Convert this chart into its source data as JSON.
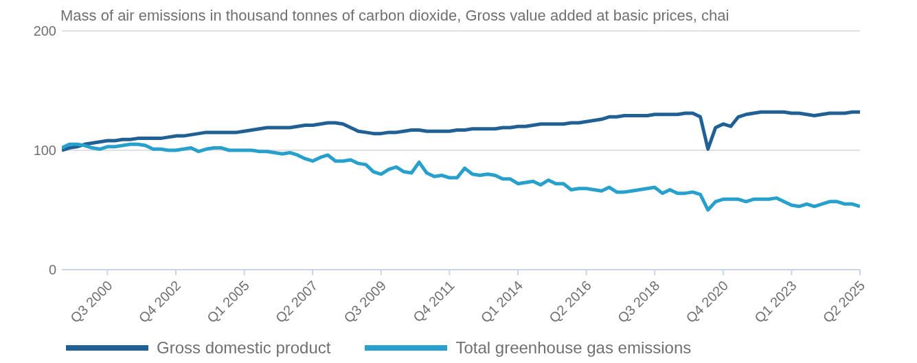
{
  "chart_data": {
    "type": "line",
    "title": "Mass of air emissions in thousand tonnes of carbon dioxide, Gross value added at basic prices, chai",
    "categories": [
      null,
      null,
      null,
      null,
      null,
      null,
      "Q3 2000",
      null,
      null,
      null,
      null,
      null,
      null,
      null,
      null,
      "Q4 2002",
      null,
      null,
      null,
      null,
      null,
      null,
      null,
      null,
      "Q1 2005",
      null,
      null,
      null,
      null,
      null,
      null,
      null,
      null,
      "Q2 2007",
      null,
      null,
      null,
      null,
      null,
      null,
      null,
      null,
      "Q3 2009",
      null,
      null,
      null,
      null,
      null,
      null,
      null,
      null,
      "Q4 2011",
      null,
      null,
      null,
      null,
      null,
      null,
      null,
      null,
      "Q1 2014",
      null,
      null,
      null,
      null,
      null,
      null,
      null,
      null,
      "Q2 2016",
      null,
      null,
      null,
      null,
      null,
      null,
      null,
      null,
      "Q3 2018",
      null,
      null,
      null,
      null,
      null,
      null,
      null,
      null,
      "Q4 2020",
      null,
      null,
      null,
      null,
      null,
      null,
      null,
      null,
      "Q1 2023",
      null,
      null,
      null,
      null,
      null,
      null,
      null,
      null,
      "Q2 2025"
    ],
    "series": [
      {
        "name": "Gross domestic product",
        "color": "#206095",
        "values": [
          100,
          102,
          103,
          105,
          106,
          107,
          108,
          108,
          109,
          109,
          110,
          110,
          110,
          110,
          111,
          112,
          112,
          113,
          114,
          115,
          115,
          115,
          115,
          115,
          116,
          117,
          118,
          119,
          119,
          119,
          119,
          120,
          121,
          121,
          122,
          123,
          123,
          122,
          119,
          116,
          115,
          114,
          114,
          115,
          115,
          116,
          117,
          117,
          116,
          116,
          116,
          116,
          117,
          117,
          118,
          118,
          118,
          118,
          119,
          119,
          120,
          120,
          121,
          122,
          122,
          122,
          122,
          123,
          123,
          124,
          125,
          126,
          128,
          128,
          129,
          129,
          129,
          129,
          130,
          130,
          130,
          130,
          131,
          131,
          128,
          101,
          119,
          122,
          120,
          128,
          130,
          131,
          132,
          132,
          132,
          132,
          131,
          131,
          130,
          129,
          130,
          131,
          131,
          131,
          132,
          132
        ]
      },
      {
        "name": "Total greenhouse gas emissions",
        "color": "#27a0cc",
        "values": [
          102,
          105,
          105,
          104,
          102,
          101,
          103,
          103,
          104,
          105,
          105,
          104,
          101,
          101,
          100,
          100,
          101,
          102,
          99,
          101,
          102,
          102,
          100,
          100,
          100,
          100,
          99,
          99,
          98,
          97,
          98,
          96,
          93,
          91,
          94,
          96,
          91,
          91,
          92,
          89,
          88,
          82,
          80,
          84,
          86,
          82,
          81,
          90,
          81,
          78,
          79,
          77,
          77,
          85,
          80,
          79,
          80,
          79,
          76,
          76,
          72,
          73,
          74,
          71,
          75,
          72,
          72,
          67,
          68,
          68,
          67,
          66,
          69,
          65,
          65,
          66,
          67,
          68,
          69,
          64,
          67,
          64,
          64,
          65,
          63,
          50,
          57,
          59,
          59,
          59,
          57,
          59,
          59,
          59,
          60,
          57,
          54,
          53,
          55,
          53,
          55,
          57,
          57,
          55,
          55,
          53
        ]
      }
    ],
    "ylim": [
      0,
      200
    ],
    "yticks": [
      0,
      100,
      200
    ],
    "grid": "y",
    "legend": "bottom"
  }
}
